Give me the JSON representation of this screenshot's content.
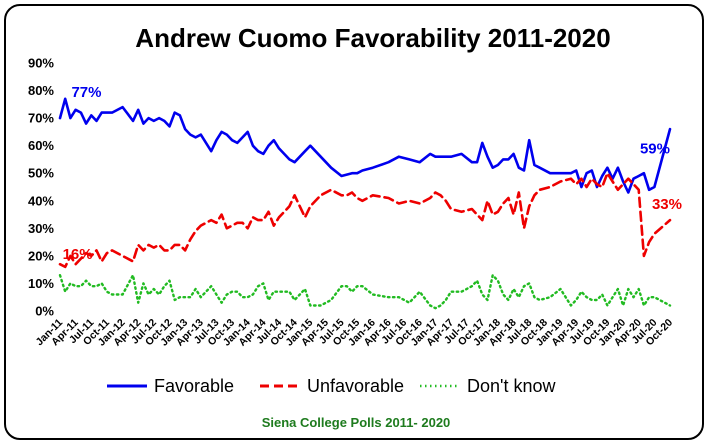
{
  "chart_data": {
    "type": "line",
    "title": "Andrew Cuomo Favorability 2011-2020",
    "source_note": "Siena College Polls 2011- 2020",
    "ylim": [
      0,
      90
    ],
    "y_ticks": [
      "0%",
      "10%",
      "20%",
      "30%",
      "40%",
      "50%",
      "60%",
      "70%",
      "80%",
      "90%"
    ],
    "x_ticks": [
      "Jan-11",
      "Apr-11",
      "Jul-11",
      "Oct-11",
      "Jan-12",
      "Apr-12",
      "Jul-12",
      "Oct-12",
      "Jan-13",
      "Apr-13",
      "Jul-13",
      "Oct-13",
      "Jan-14",
      "Apr-14",
      "Jul-14",
      "Oct-14",
      "Jan-15",
      "Apr-15",
      "Jul-15",
      "Oct-15",
      "Jan-16",
      "Apr-16",
      "Jul-16",
      "Oct-16",
      "Jan-17",
      "Apr-17",
      "Jul-17",
      "Oct-17",
      "Jan-18",
      "Apr-18",
      "Jul-18",
      "Oct-18",
      "Jan-19",
      "Apr-19",
      "Jul-19",
      "Oct-19",
      "Jan-20",
      "Apr-20",
      "Jul-20",
      "Oct-20"
    ],
    "x_range_months": [
      0,
      117
    ],
    "grid": false,
    "legend_position": "bottom",
    "series": [
      {
        "name": "Favorable",
        "color": "#0000ee",
        "dash": "solid",
        "x": [
          0,
          1,
          2,
          3,
          4,
          5,
          6,
          7,
          8,
          9,
          10,
          12,
          14,
          15,
          16,
          17,
          18,
          19,
          20,
          21,
          22,
          23,
          24,
          25,
          26,
          27,
          29,
          30,
          31,
          32,
          33,
          34,
          35,
          36,
          37,
          38,
          39,
          40,
          41,
          42,
          43,
          44,
          45,
          46,
          47,
          48,
          50,
          52,
          54,
          55,
          56,
          57,
          58,
          60,
          63,
          65,
          67,
          69,
          71,
          72,
          73,
          74,
          75,
          77,
          79,
          80,
          81,
          82,
          83,
          84,
          85,
          86,
          87,
          88,
          89,
          90,
          91,
          92,
          94,
          96,
          98,
          99,
          100,
          101,
          102,
          103,
          104,
          105,
          106,
          107,
          108,
          109,
          110,
          111,
          112,
          113,
          114,
          117
        ],
        "values": [
          70,
          77,
          70,
          73,
          72,
          68,
          71,
          69,
          72,
          72,
          72,
          74,
          69,
          73,
          68,
          70,
          69,
          70,
          69,
          67,
          72,
          71,
          66,
          64,
          63,
          64,
          58,
          62,
          65,
          64,
          62,
          61,
          63,
          65,
          60,
          58,
          57,
          60,
          62,
          59,
          57,
          55,
          54,
          56,
          58,
          60,
          56,
          52,
          49,
          49.5,
          50,
          50,
          51,
          52,
          54,
          56,
          55,
          54,
          57,
          56,
          56,
          56,
          56,
          57,
          54,
          54,
          61,
          56,
          52,
          53,
          55,
          55,
          57,
          52,
          51,
          62,
          53,
          52,
          50,
          50,
          50,
          51,
          45,
          50,
          51,
          45,
          49,
          52,
          48,
          52,
          47,
          43,
          48,
          49,
          50,
          44,
          45,
          66
        ]
      },
      {
        "name": "Unfavorable",
        "color": "#ee0000",
        "dash": "dashed",
        "x": [
          0,
          1,
          2,
          3,
          4,
          5,
          6,
          7,
          8,
          9,
          10,
          12,
          14,
          15,
          16,
          17,
          18,
          19,
          20,
          21,
          22,
          23,
          24,
          25,
          26,
          27,
          29,
          30,
          31,
          32,
          33,
          34,
          35,
          36,
          37,
          38,
          39,
          40,
          41,
          42,
          43,
          44,
          45,
          46,
          47,
          48,
          50,
          52,
          54,
          55,
          56,
          57,
          58,
          60,
          63,
          65,
          67,
          69,
          71,
          72,
          73,
          74,
          75,
          77,
          79,
          80,
          81,
          82,
          83,
          84,
          85,
          86,
          87,
          88,
          89,
          90,
          91,
          92,
          94,
          96,
          98,
          99,
          100,
          101,
          102,
          103,
          104,
          105,
          106,
          107,
          108,
          109,
          110,
          111,
          112,
          113,
          114,
          117
        ],
        "values": [
          17,
          16,
          20,
          17,
          19,
          21,
          20,
          22,
          18,
          21,
          22,
          20,
          18,
          24,
          22,
          24,
          23,
          24,
          22,
          22,
          24,
          24,
          22,
          26,
          29,
          31,
          33,
          32,
          35,
          30,
          31,
          32,
          32,
          30,
          34,
          33,
          33,
          36,
          31,
          34,
          36,
          38,
          42,
          38,
          34,
          38,
          42,
          44,
          42,
          42,
          43,
          41,
          40,
          42,
          41,
          39,
          40,
          39,
          41,
          43,
          42,
          40,
          37,
          36,
          37,
          35,
          33,
          40,
          35,
          36,
          39,
          41,
          35,
          43,
          30,
          38,
          42,
          44,
          45,
          47,
          48,
          46,
          48,
          45,
          48,
          46,
          45,
          50,
          47,
          44,
          46,
          48,
          46,
          44,
          20,
          25,
          28,
          33
        ]
      },
      {
        "name": "Don't know",
        "color": "#22bb22",
        "dash": "dotted",
        "x": [
          0,
          1,
          2,
          3,
          4,
          5,
          6,
          7,
          8,
          9,
          10,
          12,
          14,
          15,
          16,
          17,
          18,
          19,
          20,
          21,
          22,
          23,
          24,
          25,
          26,
          27,
          29,
          30,
          31,
          32,
          33,
          34,
          35,
          36,
          37,
          38,
          39,
          40,
          41,
          42,
          43,
          44,
          45,
          46,
          47,
          48,
          50,
          52,
          54,
          55,
          56,
          57,
          58,
          60,
          63,
          65,
          67,
          69,
          71,
          72,
          73,
          74,
          75,
          77,
          79,
          80,
          81,
          82,
          83,
          84,
          85,
          86,
          87,
          88,
          89,
          90,
          91,
          92,
          94,
          96,
          98,
          99,
          100,
          101,
          102,
          103,
          104,
          105,
          106,
          107,
          108,
          109,
          110,
          111,
          112,
          113,
          114,
          117
        ],
        "values": [
          13,
          7,
          10,
          9,
          9,
          11,
          9,
          9,
          10,
          7,
          6,
          6,
          13,
          3,
          10,
          6,
          8,
          6,
          9,
          11,
          4,
          5,
          5,
          5,
          8,
          5,
          9,
          6,
          3,
          6,
          7,
          7,
          5,
          5,
          6,
          9,
          10,
          4,
          7,
          7,
          7,
          7,
          4,
          6,
          8,
          2,
          2,
          4,
          9,
          9,
          7,
          9,
          9,
          6,
          5,
          5,
          3,
          7,
          2,
          1,
          2,
          4,
          7,
          7,
          9,
          11,
          6,
          4,
          13,
          11,
          6,
          4,
          8,
          5,
          9,
          10,
          5,
          4,
          5,
          8,
          2,
          4,
          7,
          5,
          4,
          4,
          6,
          2,
          5,
          8,
          2,
          8,
          5,
          8,
          2,
          5,
          5,
          2
        ]
      }
    ],
    "annotations": [
      {
        "text": "77%",
        "series": "Favorable",
        "color": "#0000ee"
      },
      {
        "text": "16%",
        "series": "Unfavorable",
        "color": "#ee0000"
      },
      {
        "text": "59%",
        "series": "Favorable",
        "color": "#0000ee"
      },
      {
        "text": "33%",
        "series": "Unfavorable",
        "color": "#ee0000"
      }
    ]
  }
}
